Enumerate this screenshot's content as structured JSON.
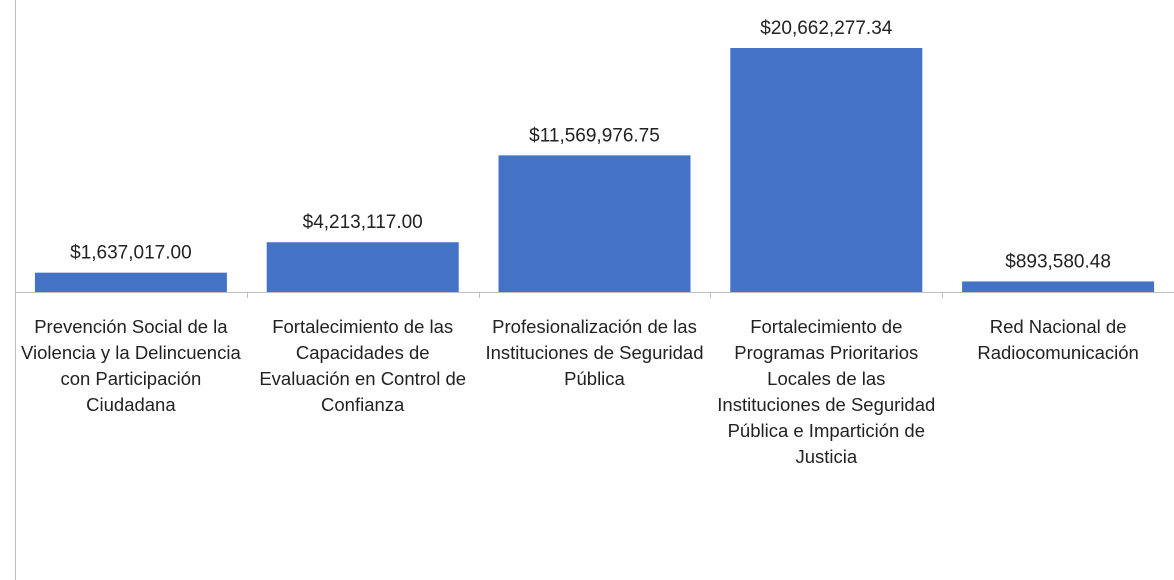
{
  "chart_data": {
    "type": "bar",
    "categories": [
      "Prevención Social de la Violencia y la Delincuencia con Participación Ciudadana",
      "Fortalecimiento de las Capacidades de Evaluación en Control de Confianza",
      "Profesionalización de las Instituciones de Seguridad Pública",
      "Fortalecimiento de Programas Prioritarios Locales de las Instituciones de Seguridad Pública e Impartición de Justicia",
      "Red Nacional de Radiocomunicación"
    ],
    "values": [
      1637017.0,
      4213117.0,
      11569976.75,
      20662277.34,
      893580.48
    ],
    "value_labels": [
      "$1,637,017.00",
      "$4,213,117.00",
      "$11,569,976.75",
      "$20,662,277.34",
      "$893,580.48"
    ],
    "color": "#4472c4"
  }
}
